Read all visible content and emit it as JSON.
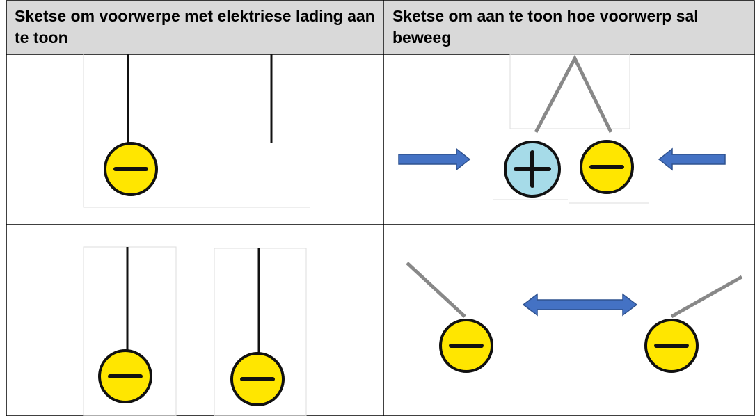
{
  "table": {
    "header": [
      "Sketse om voorwerpe met elektriese lading aan te toon",
      "Sketse om aan te toon hoe voorwerp sal beweeg"
    ]
  }
}
